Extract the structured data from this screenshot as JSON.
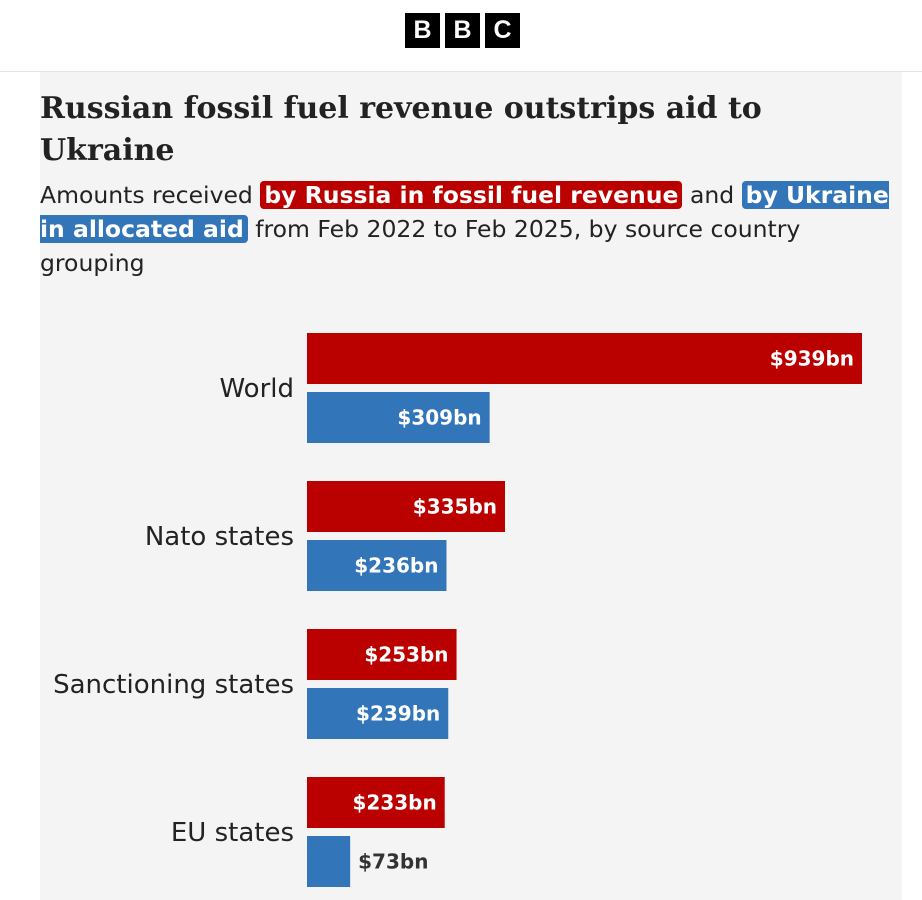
{
  "brand": {
    "letters": [
      "B",
      "B",
      "C"
    ]
  },
  "title": "Russian fossil fuel revenue outstrips aid to Ukraine",
  "subtitle": {
    "part1": "Amounts received ",
    "hl_russia": "by Russia in fossil fuel revenue",
    "part2": " and ",
    "hl_ukraine": "by Ukraine in allocated aid",
    "part3": " from Feb 2022 to Feb 2025, by source country grouping"
  },
  "colors": {
    "russia": "#bb0000",
    "ukraine": "#3275b8",
    "background": "#f4f4f4"
  },
  "chart_data": {
    "type": "bar",
    "orientation": "horizontal",
    "categories": [
      "World",
      "Nato states",
      "Sanctioning states",
      "EU states"
    ],
    "series": [
      {
        "key": "russia",
        "values": [
          939,
          335,
          253,
          233
        ],
        "labels": [
          "$939bn",
          "$335bn",
          "$253bn",
          "$233bn"
        ]
      },
      {
        "key": "ukraine",
        "values": [
          309,
          236,
          239,
          73
        ],
        "labels": [
          "$309bn",
          "$236bn",
          "$239bn",
          "$73bn"
        ]
      }
    ],
    "unit": "$bn",
    "xlim": [
      0,
      939
    ],
    "grid": false,
    "legend": "inline in subtitle"
  }
}
